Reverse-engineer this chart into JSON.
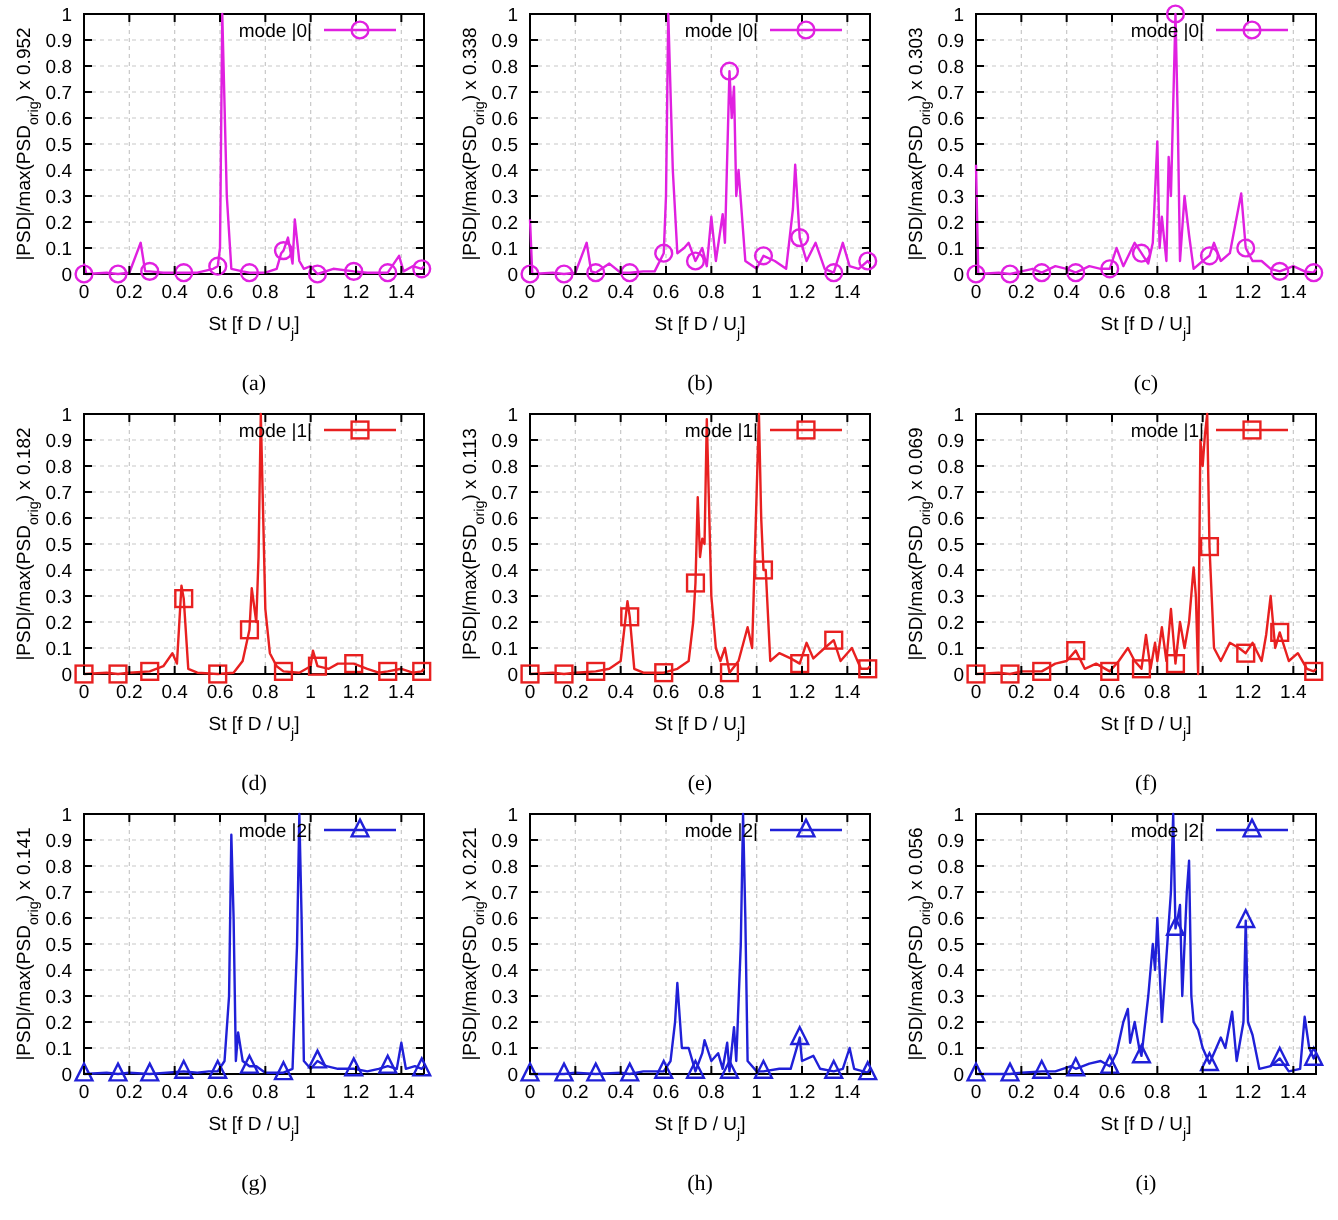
{
  "chart_data": [
    {
      "type": "line",
      "xlabel": "St [f D / U$_{j}$]",
      "ylabel": "|PSD|/max(PSD$_{orig}$) x 0.952",
      "annotations": [
        "(a)"
      ],
      "xlim": [
        0,
        1.5
      ],
      "ylim": [
        0,
        1
      ],
      "xticks": [
        0,
        0.2,
        0.4,
        0.6,
        0.8,
        1,
        1.2,
        1.4
      ],
      "yticks": [
        0,
        0.1,
        0.2,
        0.3,
        0.4,
        0.5,
        0.6,
        0.7,
        0.8,
        0.9,
        1
      ],
      "grid": true,
      "legend": "top right",
      "series": [
        {
          "name": "mode |0|",
          "color": "#e020e0",
          "x": [
            0,
            0.01,
            0.1,
            0.15,
            0.2,
            0.25,
            0.27,
            0.29,
            0.35,
            0.44,
            0.5,
            0.57,
            0.59,
            0.6,
            0.61,
            0.63,
            0.65,
            0.7,
            0.73,
            0.8,
            0.85,
            0.87,
            0.88,
            0.9,
            0.92,
            0.93,
            0.95,
            0.97,
            1.0,
            1.03,
            1.1,
            1.19,
            1.25,
            1.34,
            1.39,
            1.41,
            1.45,
            1.49,
            1.5
          ],
          "values": [
            0.04,
            0,
            0.005,
            0,
            0.005,
            0.12,
            0.01,
            0.01,
            0.005,
            0.005,
            0.005,
            0.02,
            0.03,
            0.1,
            1.0,
            0.3,
            0.02,
            0.01,
            0.005,
            0.005,
            0.02,
            0.08,
            0.09,
            0.14,
            0.04,
            0.21,
            0.05,
            0.02,
            0.03,
            0,
            0.02,
            0.01,
            0.005,
            0.005,
            0.07,
            0.01,
            0.03,
            0.02,
            0.03
          ]
        },
        {
          "type": "scatter",
          "marker": "circle",
          "color": "#e020e0",
          "x": [
            0,
            0.15,
            0.29,
            0.44,
            0.59,
            0.73,
            0.88,
            1.03,
            1.19,
            1.34,
            1.49
          ],
          "values": [
            0,
            0,
            0.01,
            0.005,
            0.03,
            0.005,
            0.09,
            0,
            0.01,
            0.005,
            0.02
          ]
        }
      ]
    },
    {
      "type": "line",
      "xlabel": "St [f D / U$_{j}$]",
      "ylabel": "|PSD|/max(PSD$_{orig}$) x 0.338",
      "annotations": [
        "(b)"
      ],
      "xlim": [
        0,
        1.5
      ],
      "ylim": [
        0,
        1
      ],
      "xticks": [
        0,
        0.2,
        0.4,
        0.6,
        0.8,
        1,
        1.2,
        1.4
      ],
      "yticks": [
        0,
        0.1,
        0.2,
        0.3,
        0.4,
        0.5,
        0.6,
        0.7,
        0.8,
        0.9,
        1
      ],
      "grid": true,
      "legend": "top right",
      "series": [
        {
          "name": "mode |0|",
          "color": "#e020e0",
          "x": [
            0,
            0.01,
            0.1,
            0.15,
            0.2,
            0.25,
            0.27,
            0.29,
            0.35,
            0.4,
            0.44,
            0.5,
            0.55,
            0.59,
            0.6,
            0.61,
            0.63,
            0.65,
            0.68,
            0.7,
            0.73,
            0.76,
            0.78,
            0.8,
            0.82,
            0.85,
            0.86,
            0.88,
            0.89,
            0.9,
            0.91,
            0.92,
            0.95,
            1.0,
            1.03,
            1.08,
            1.13,
            1.16,
            1.17,
            1.19,
            1.22,
            1.26,
            1.3,
            1.34,
            1.38,
            1.41,
            1.45,
            1.49,
            1.5
          ],
          "values": [
            0.21,
            0,
            0.005,
            0,
            0.005,
            0.12,
            0.01,
            0.005,
            0.04,
            0.005,
            0.005,
            0.01,
            0.01,
            0.08,
            0.3,
            1.0,
            0.4,
            0.08,
            0.1,
            0.12,
            0.05,
            0.1,
            0.03,
            0.22,
            0.05,
            0.23,
            0.12,
            0.78,
            0.6,
            0.72,
            0.3,
            0.4,
            0.05,
            0.02,
            0.07,
            0.05,
            0.02,
            0.25,
            0.42,
            0.14,
            0.05,
            0.12,
            0.02,
            0.005,
            0.12,
            0.03,
            0.02,
            0.05,
            0.04
          ]
        },
        {
          "type": "scatter",
          "marker": "circle",
          "color": "#e020e0",
          "x": [
            0,
            0.15,
            0.29,
            0.44,
            0.59,
            0.73,
            0.88,
            1.03,
            1.19,
            1.34,
            1.49
          ],
          "values": [
            0,
            0,
            0.005,
            0.005,
            0.08,
            0.05,
            0.78,
            0.07,
            0.14,
            0.005,
            0.05
          ]
        }
      ]
    },
    {
      "type": "line",
      "xlabel": "St [f D / U$_{j}$]",
      "ylabel": "|PSD|/max(PSD$_{orig}$) x 0.303",
      "annotations": [
        "(c)"
      ],
      "xlim": [
        0,
        1.5
      ],
      "ylim": [
        0,
        1
      ],
      "xticks": [
        0,
        0.2,
        0.4,
        0.6,
        0.8,
        1,
        1.2,
        1.4
      ],
      "yticks": [
        0,
        0.1,
        0.2,
        0.3,
        0.4,
        0.5,
        0.6,
        0.7,
        0.8,
        0.9,
        1
      ],
      "grid": true,
      "legend": "top right",
      "series": [
        {
          "name": "mode |0|",
          "color": "#e020e0",
          "x": [
            0,
            0.01,
            0.1,
            0.15,
            0.2,
            0.25,
            0.29,
            0.35,
            0.4,
            0.44,
            0.5,
            0.55,
            0.59,
            0.62,
            0.65,
            0.7,
            0.73,
            0.76,
            0.78,
            0.8,
            0.81,
            0.82,
            0.84,
            0.85,
            0.86,
            0.88,
            0.89,
            0.9,
            0.92,
            0.94,
            0.96,
            1.0,
            1.03,
            1.05,
            1.08,
            1.12,
            1.17,
            1.19,
            1.22,
            1.26,
            1.3,
            1.34,
            1.4,
            1.45,
            1.49,
            1.5
          ],
          "values": [
            0.42,
            0,
            0.005,
            0,
            0.01,
            0.02,
            0.005,
            0.03,
            0.02,
            0.005,
            0.03,
            0.02,
            0.02,
            0.1,
            0.03,
            0.12,
            0.08,
            0.04,
            0.12,
            0.51,
            0.1,
            0.22,
            0.05,
            0.45,
            0.3,
            1.0,
            0.6,
            0.05,
            0.3,
            0.15,
            0.02,
            0.05,
            0.07,
            0.12,
            0.05,
            0.08,
            0.31,
            0.1,
            0.05,
            0.05,
            0.02,
            0.01,
            0.03,
            0.01,
            0.005,
            0.02
          ]
        },
        {
          "type": "scatter",
          "marker": "circle",
          "color": "#e020e0",
          "x": [
            0,
            0.15,
            0.29,
            0.44,
            0.59,
            0.73,
            0.88,
            1.03,
            1.19,
            1.34,
            1.49
          ],
          "values": [
            0,
            0,
            0.005,
            0.005,
            0.02,
            0.08,
            1.0,
            0.07,
            0.1,
            0.01,
            0.005
          ]
        }
      ]
    },
    {
      "type": "line",
      "xlabel": "St [f D / U$_{j}$]",
      "ylabel": "|PSD|/max(PSD$_{orig}$) x 0.182",
      "annotations": [
        "(d)"
      ],
      "xlim": [
        0,
        1.5
      ],
      "ylim": [
        0,
        1
      ],
      "xticks": [
        0,
        0.2,
        0.4,
        0.6,
        0.8,
        1,
        1.2,
        1.4
      ],
      "yticks": [
        0,
        0.1,
        0.2,
        0.3,
        0.4,
        0.5,
        0.6,
        0.7,
        0.8,
        0.9,
        1
      ],
      "grid": true,
      "legend": "top right",
      "series": [
        {
          "name": "mode |1|",
          "color": "#e82020",
          "x": [
            0,
            0.1,
            0.15,
            0.2,
            0.29,
            0.35,
            0.39,
            0.41,
            0.43,
            0.44,
            0.46,
            0.5,
            0.59,
            0.66,
            0.7,
            0.73,
            0.74,
            0.76,
            0.77,
            0.78,
            0.8,
            0.82,
            0.85,
            0.88,
            0.95,
            1.0,
            1.01,
            1.03,
            1.08,
            1.12,
            1.19,
            1.25,
            1.3,
            1.34,
            1.4,
            1.45,
            1.49,
            1.5
          ],
          "values": [
            0,
            0.005,
            0,
            0.005,
            0.01,
            0.03,
            0.08,
            0.04,
            0.34,
            0.29,
            0.02,
            0.005,
            0,
            0.005,
            0.05,
            0.17,
            0.33,
            0.2,
            0.45,
            1.0,
            0.25,
            0.08,
            0.03,
            0.01,
            0.005,
            0.03,
            0.09,
            0.03,
            0.02,
            0.04,
            0.04,
            0.02,
            0.005,
            0.01,
            0.02,
            0.005,
            0.01,
            0.02
          ]
        },
        {
          "type": "scatter",
          "marker": "square",
          "color": "#e82020",
          "x": [
            0,
            0.15,
            0.29,
            0.44,
            0.59,
            0.73,
            0.88,
            1.03,
            1.19,
            1.34,
            1.49
          ],
          "values": [
            0,
            0,
            0.01,
            0.29,
            0,
            0.17,
            0.01,
            0.03,
            0.04,
            0.01,
            0.01
          ]
        }
      ]
    },
    {
      "type": "line",
      "xlabel": "St [f D / U$_{j}$]",
      "ylabel": "|PSD|/max(PSD$_{orig}$) x 0.113",
      "annotations": [
        "(e)"
      ],
      "xlim": [
        0,
        1.5
      ],
      "ylim": [
        0,
        1
      ],
      "xticks": [
        0,
        0.2,
        0.4,
        0.6,
        0.8,
        1,
        1.2,
        1.4
      ],
      "yticks": [
        0,
        0.1,
        0.2,
        0.3,
        0.4,
        0.5,
        0.6,
        0.7,
        0.8,
        0.9,
        1
      ],
      "grid": true,
      "legend": "top right",
      "series": [
        {
          "name": "mode |1|",
          "color": "#e82020",
          "x": [
            0,
            0.1,
            0.15,
            0.2,
            0.29,
            0.35,
            0.4,
            0.43,
            0.44,
            0.46,
            0.5,
            0.59,
            0.65,
            0.7,
            0.72,
            0.73,
            0.74,
            0.75,
            0.76,
            0.77,
            0.78,
            0.8,
            0.82,
            0.84,
            0.86,
            0.88,
            0.92,
            0.96,
            0.98,
            1.0,
            1.01,
            1.02,
            1.03,
            1.04,
            1.06,
            1.1,
            1.15,
            1.19,
            1.22,
            1.25,
            1.3,
            1.34,
            1.37,
            1.42,
            1.46,
            1.49,
            1.5
          ],
          "values": [
            0,
            0.005,
            0,
            0.005,
            0.01,
            0.02,
            0.05,
            0.28,
            0.22,
            0.02,
            0.005,
            0.005,
            0.02,
            0.05,
            0.2,
            0.35,
            0.68,
            0.45,
            0.52,
            0.5,
            0.98,
            0.3,
            0.1,
            0.05,
            0.1,
            0.005,
            0.05,
            0.18,
            0.1,
            0.7,
            1.0,
            0.6,
            0.4,
            0.4,
            0.05,
            0.08,
            0.06,
            0.04,
            0.12,
            0.06,
            0.1,
            0.13,
            0.05,
            0.1,
            0.02,
            0.02,
            0.03
          ]
        },
        {
          "type": "scatter",
          "marker": "square",
          "color": "#e82020",
          "x": [
            0,
            0.15,
            0.29,
            0.44,
            0.59,
            0.73,
            0.88,
            1.03,
            1.19,
            1.34,
            1.49
          ],
          "values": [
            0,
            0,
            0.01,
            0.22,
            0.005,
            0.35,
            0.005,
            0.4,
            0.04,
            0.13,
            0.02
          ]
        }
      ]
    },
    {
      "type": "line",
      "xlabel": "St [f D / U$_{j}$]",
      "ylabel": "|PSD|/max(PSD$_{orig}$) x 0.069",
      "annotations": [
        "(f)"
      ],
      "xlim": [
        0,
        1.5
      ],
      "ylim": [
        0,
        1
      ],
      "xticks": [
        0,
        0.2,
        0.4,
        0.6,
        0.8,
        1,
        1.2,
        1.4
      ],
      "yticks": [
        0,
        0.1,
        0.2,
        0.3,
        0.4,
        0.5,
        0.6,
        0.7,
        0.8,
        0.9,
        1
      ],
      "grid": true,
      "legend": "top right",
      "series": [
        {
          "name": "mode |1|",
          "color": "#e82020",
          "x": [
            0,
            0.1,
            0.15,
            0.2,
            0.29,
            0.35,
            0.4,
            0.44,
            0.48,
            0.53,
            0.59,
            0.63,
            0.67,
            0.7,
            0.73,
            0.75,
            0.77,
            0.79,
            0.8,
            0.82,
            0.84,
            0.86,
            0.88,
            0.9,
            0.92,
            0.94,
            0.96,
            0.97,
            0.98,
            0.99,
            1.0,
            1.01,
            1.02,
            1.03,
            1.05,
            1.08,
            1.12,
            1.16,
            1.19,
            1.22,
            1.26,
            1.28,
            1.3,
            1.32,
            1.34,
            1.38,
            1.42,
            1.46,
            1.49,
            1.5
          ],
          "values": [
            0,
            0.005,
            0,
            0.01,
            0.01,
            0.04,
            0.05,
            0.09,
            0.02,
            0.04,
            0.01,
            0.05,
            0.1,
            0.05,
            0.02,
            0.15,
            0.02,
            0.12,
            0.05,
            0.18,
            0.05,
            0.25,
            0.04,
            0.2,
            0.1,
            0.2,
            0.41,
            0.3,
            0,
            0.9,
            0.8,
            0.92,
            1.0,
            0.49,
            0.1,
            0.05,
            0.12,
            0.1,
            0.08,
            0.12,
            0.05,
            0.15,
            0.3,
            0.1,
            0.16,
            0.05,
            0.08,
            0.02,
            0.01,
            0.02
          ]
        },
        {
          "type": "scatter",
          "marker": "square",
          "color": "#e82020",
          "x": [
            0,
            0.15,
            0.29,
            0.44,
            0.59,
            0.73,
            0.88,
            1.03,
            1.19,
            1.34,
            1.49
          ],
          "values": [
            0,
            0,
            0.01,
            0.09,
            0.01,
            0.02,
            0.04,
            0.49,
            0.08,
            0.16,
            0.01
          ]
        }
      ]
    },
    {
      "type": "line",
      "xlabel": "St [f D / U$_{j}$]",
      "ylabel": "|PSD|/max(PSD$_{orig}$) x 0.141",
      "annotations": [
        "(g)"
      ],
      "xlim": [
        0,
        1.5
      ],
      "ylim": [
        0,
        1
      ],
      "xticks": [
        0,
        0.2,
        0.4,
        0.6,
        0.8,
        1,
        1.2,
        1.4
      ],
      "yticks": [
        0,
        0.1,
        0.2,
        0.3,
        0.4,
        0.5,
        0.6,
        0.7,
        0.8,
        0.9,
        1
      ],
      "grid": true,
      "legend": "top right",
      "series": [
        {
          "name": "mode |2|",
          "color": "#2020d8",
          "x": [
            0,
            0.1,
            0.15,
            0.2,
            0.29,
            0.44,
            0.5,
            0.55,
            0.59,
            0.62,
            0.64,
            0.65,
            0.66,
            0.67,
            0.68,
            0.7,
            0.73,
            0.76,
            0.8,
            0.88,
            0.92,
            0.94,
            0.95,
            0.96,
            0.97,
            1.0,
            1.03,
            1.07,
            1.12,
            1.19,
            1.25,
            1.3,
            1.34,
            1.38,
            1.4,
            1.42,
            1.46,
            1.49,
            1.5
          ],
          "values": [
            0,
            0.005,
            0,
            0.005,
            0,
            0.01,
            0.005,
            0.01,
            0.01,
            0.05,
            0.3,
            0.92,
            0.6,
            0.05,
            0.16,
            0.05,
            0.03,
            0.03,
            0.005,
            0.005,
            0.02,
            0.5,
            1.0,
            0.6,
            0.05,
            0.02,
            0.05,
            0.03,
            0.02,
            0.02,
            0.01,
            0.02,
            0.03,
            0.02,
            0.12,
            0.02,
            0.03,
            0.02,
            0.03
          ]
        },
        {
          "type": "scatter",
          "marker": "triangle",
          "color": "#2020d8",
          "x": [
            0,
            0.15,
            0.29,
            0.44,
            0.59,
            0.73,
            0.88,
            1.03,
            1.19,
            1.34,
            1.49
          ],
          "values": [
            0,
            0,
            0,
            0.01,
            0.01,
            0.03,
            0.005,
            0.05,
            0.02,
            0.03,
            0.02
          ]
        }
      ]
    },
    {
      "type": "line",
      "xlabel": "St [f D / U$_{j}$]",
      "ylabel": "|PSD|/max(PSD$_{orig}$) x 0.221",
      "annotations": [
        "(h)"
      ],
      "xlim": [
        0,
        1.5
      ],
      "ylim": [
        0,
        1
      ],
      "xticks": [
        0,
        0.2,
        0.4,
        0.6,
        0.8,
        1,
        1.2,
        1.4
      ],
      "yticks": [
        0,
        0.1,
        0.2,
        0.3,
        0.4,
        0.5,
        0.6,
        0.7,
        0.8,
        0.9,
        1
      ],
      "grid": true,
      "legend": "top right",
      "series": [
        {
          "name": "mode |2|",
          "color": "#2020d8",
          "x": [
            0,
            0.15,
            0.2,
            0.29,
            0.4,
            0.44,
            0.5,
            0.59,
            0.62,
            0.64,
            0.65,
            0.67,
            0.7,
            0.73,
            0.76,
            0.77,
            0.8,
            0.83,
            0.85,
            0.87,
            0.88,
            0.9,
            0.91,
            0.93,
            0.94,
            0.95,
            0.96,
            1.0,
            1.03,
            1.1,
            1.15,
            1.19,
            1.2,
            1.25,
            1.28,
            1.34,
            1.38,
            1.41,
            1.43,
            1.49,
            1.5
          ],
          "values": [
            0,
            0,
            0.005,
            0,
            0.005,
            0,
            0.01,
            0.01,
            0.05,
            0.2,
            0.35,
            0.1,
            0.1,
            0.01,
            0.08,
            0.13,
            0.05,
            0.08,
            0.02,
            0.12,
            0.01,
            0.18,
            0.05,
            0.5,
            1.0,
            0.6,
            0.05,
            0.01,
            0.01,
            0.02,
            0.02,
            0.14,
            0.05,
            0.07,
            0.02,
            0.01,
            0.02,
            0.1,
            0.02,
            0.005,
            0.02
          ]
        },
        {
          "type": "scatter",
          "marker": "triangle",
          "color": "#2020d8",
          "x": [
            0,
            0.15,
            0.29,
            0.44,
            0.59,
            0.73,
            0.88,
            1.03,
            1.19,
            1.34,
            1.49
          ],
          "values": [
            0,
            0,
            0,
            0,
            0.01,
            0.01,
            0.01,
            0.01,
            0.14,
            0.01,
            0.005
          ]
        }
      ]
    },
    {
      "type": "line",
      "xlabel": "St [f D / U$_{j}$]",
      "ylabel": "|PSD|/max(PSD$_{orig}$) x 0.056",
      "annotations": [
        "(i)"
      ],
      "xlim": [
        0,
        1.5
      ],
      "ylim": [
        0,
        1
      ],
      "xticks": [
        0,
        0.2,
        0.4,
        0.6,
        0.8,
        1,
        1.2,
        1.4
      ],
      "yticks": [
        0,
        0.1,
        0.2,
        0.3,
        0.4,
        0.5,
        0.6,
        0.7,
        0.8,
        0.9,
        1
      ],
      "grid": true,
      "legend": "top right",
      "series": [
        {
          "name": "mode |2|",
          "color": "#2020d8",
          "x": [
            0,
            0.15,
            0.2,
            0.29,
            0.35,
            0.42,
            0.44,
            0.5,
            0.55,
            0.59,
            0.62,
            0.65,
            0.67,
            0.68,
            0.7,
            0.72,
            0.73,
            0.76,
            0.78,
            0.79,
            0.8,
            0.82,
            0.84,
            0.86,
            0.87,
            0.88,
            0.89,
            0.9,
            0.91,
            0.93,
            0.94,
            0.95,
            0.96,
            0.98,
            1.0,
            1.03,
            1.06,
            1.08,
            1.1,
            1.13,
            1.15,
            1.18,
            1.19,
            1.2,
            1.22,
            1.25,
            1.3,
            1.34,
            1.38,
            1.43,
            1.45,
            1.47,
            1.49,
            1.5
          ],
          "values": [
            0,
            0,
            0.005,
            0.01,
            0.01,
            0.03,
            0.02,
            0.04,
            0.05,
            0.03,
            0.08,
            0.2,
            0.25,
            0.12,
            0.2,
            0.1,
            0.07,
            0.3,
            0.5,
            0.4,
            0.6,
            0.2,
            0.45,
            0.7,
            1.0,
            0.56,
            0.6,
            0.65,
            0.3,
            0.7,
            0.82,
            0.3,
            0.2,
            0.17,
            0.1,
            0.04,
            0.1,
            0.14,
            0.1,
            0.24,
            0.05,
            0.2,
            0.59,
            0.2,
            0.15,
            0.02,
            0.03,
            0.06,
            0.01,
            0.02,
            0.22,
            0.1,
            0.06,
            0.08
          ]
        },
        {
          "type": "scatter",
          "marker": "triangle",
          "color": "#2020d8",
          "x": [
            0,
            0.15,
            0.29,
            0.44,
            0.59,
            0.73,
            0.88,
            1.03,
            1.19,
            1.34,
            1.49
          ],
          "values": [
            0,
            0,
            0.01,
            0.02,
            0.03,
            0.07,
            0.56,
            0.04,
            0.59,
            0.06,
            0.06
          ]
        }
      ]
    }
  ]
}
